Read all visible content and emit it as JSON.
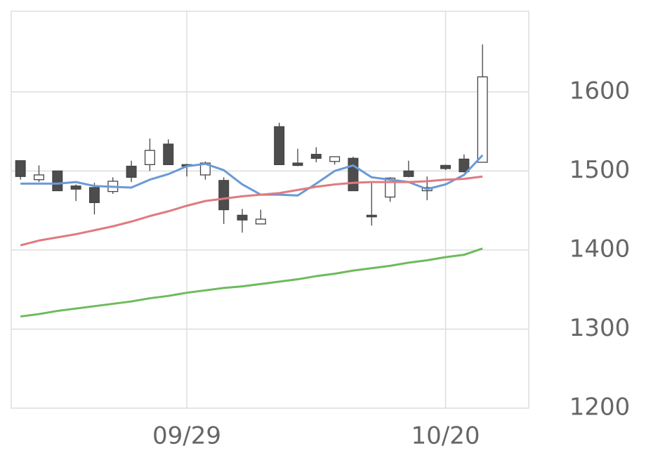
{
  "chart_data": {
    "type": "candlestick",
    "categories": [
      null,
      null,
      null,
      null,
      null,
      null,
      null,
      null,
      null,
      "09/29",
      null,
      null,
      null,
      null,
      null,
      null,
      null,
      null,
      null,
      null,
      null,
      null,
      null,
      "10/20",
      null,
      null
    ],
    "open": [
      1513,
      1489,
      1500,
      1481,
      1479,
      1474,
      1506,
      1508,
      1534,
      1508,
      1495,
      1488,
      1444,
      1433,
      1556,
      1510,
      1521,
      1512,
      1516,
      1444,
      1467,
      1500,
      1475,
      1507,
      1515,
      1511
    ],
    "high": [
      1513,
      1507,
      1500,
      1483,
      1485,
      1492,
      1513,
      1541,
      1540,
      1509,
      1512,
      1492,
      1452,
      1451,
      1561,
      1528,
      1530,
      1518,
      1518,
      1487,
      1492,
      1513,
      1493,
      1508,
      1521,
      1660
    ],
    "low": [
      1489,
      1486,
      1475,
      1462,
      1445,
      1471,
      1486,
      1500,
      1508,
      1493,
      1489,
      1433,
      1422,
      1433,
      1508,
      1506,
      1511,
      1508,
      1475,
      1431,
      1461,
      1492,
      1463,
      1501,
      1498,
      1511
    ],
    "close": [
      1493,
      1495,
      1475,
      1477,
      1460,
      1487,
      1492,
      1526,
      1508,
      1506,
      1510,
      1451,
      1438,
      1439,
      1508,
      1507,
      1516,
      1518,
      1475,
      1442,
      1491,
      1493,
      1479,
      1503,
      1499,
      1619
    ],
    "up_color": "#ffffff",
    "down_color": "#4d4d4d",
    "wick_color": "#444444",
    "lines": [
      {
        "color": "#6a9ad6",
        "values": [
          1484,
          1484,
          1484,
          1486,
          1481,
          1480,
          1479,
          1489,
          1496,
          1506,
          1509,
          1501,
          1483,
          1470,
          1470,
          1469,
          1484,
          1500,
          1507,
          1492,
          1489,
          1486,
          1477,
          1483,
          1495,
          1520
        ]
      },
      {
        "color": "#e07a7f",
        "values": [
          1406,
          1412,
          1416,
          1420,
          1425,
          1430,
          1436,
          1443,
          1449,
          1456,
          1462,
          1465,
          1468,
          1470,
          1472,
          1476,
          1480,
          1483,
          1485,
          1486,
          1486,
          1486,
          1487,
          1489,
          1490,
          1493
        ]
      },
      {
        "color": "#6dbb5c",
        "values": [
          1316,
          1319,
          1323,
          1326,
          1329,
          1332,
          1335,
          1339,
          1342,
          1346,
          1349,
          1352,
          1354,
          1357,
          1360,
          1363,
          1367,
          1370,
          1374,
          1377,
          1380,
          1384,
          1387,
          1391,
          1394,
          1402
        ]
      }
    ],
    "ylim": [
      1200,
      1702
    ],
    "yticks": [
      1200,
      1300,
      1400,
      1500,
      1600
    ],
    "grid": true
  }
}
